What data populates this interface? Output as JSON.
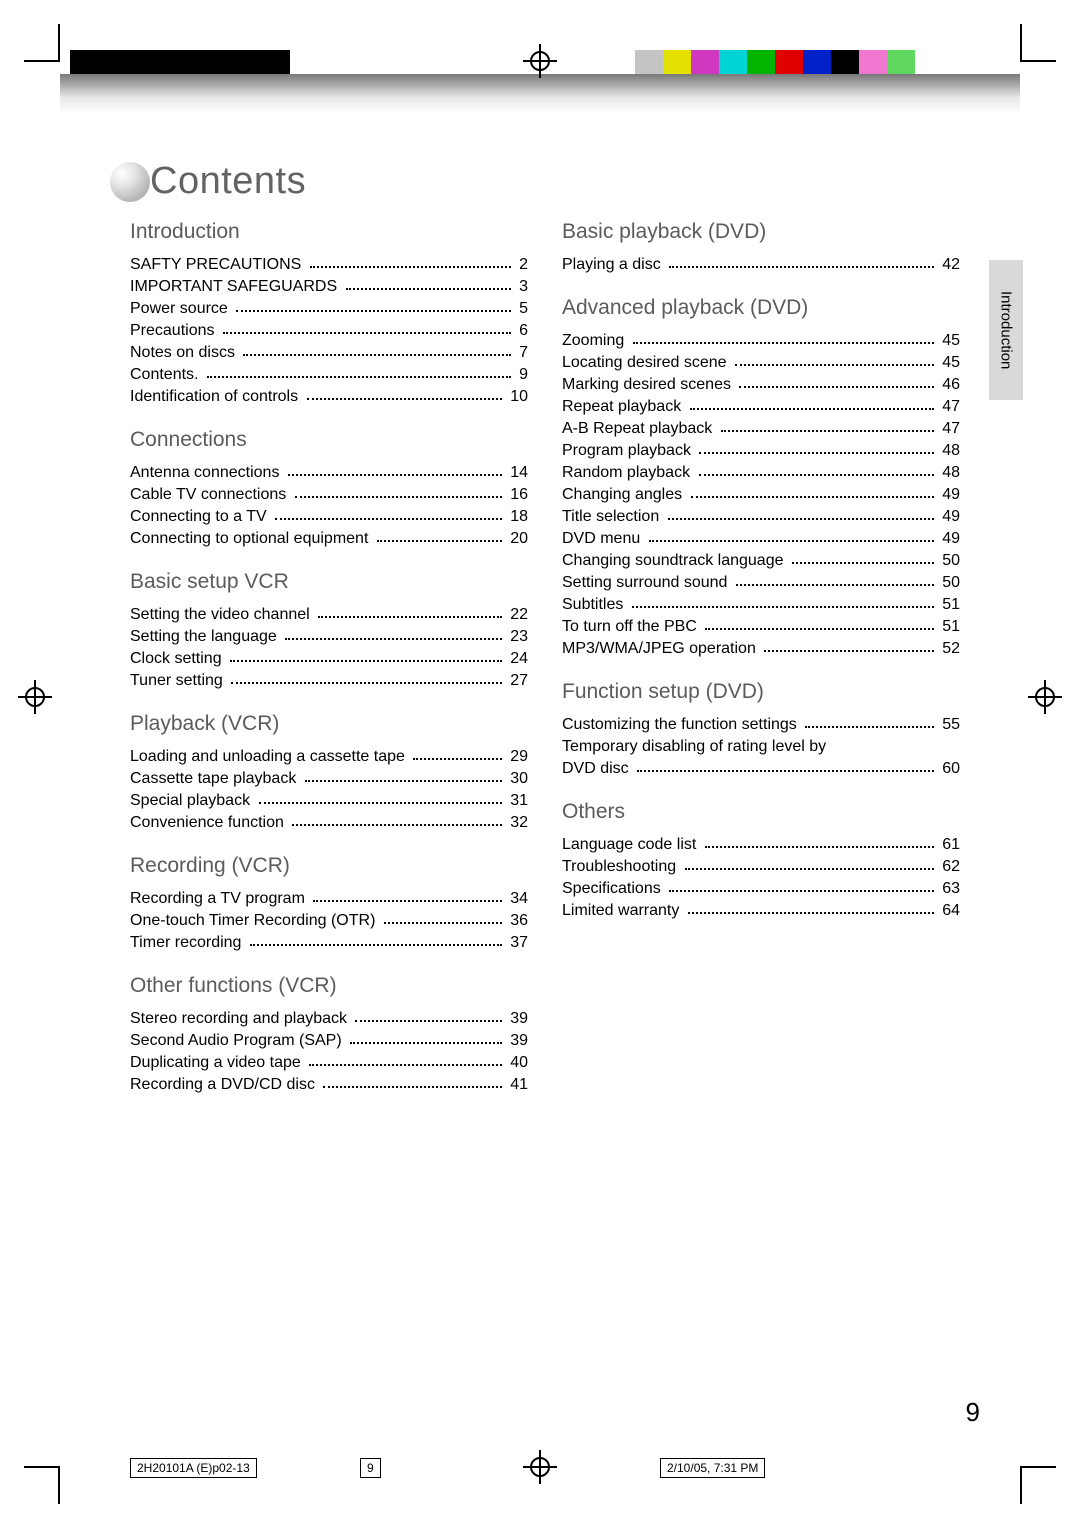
{
  "colors": {
    "swatches": [
      "#c4c4c4",
      "#e4e000",
      "#d038c0",
      "#00d4d4",
      "#00b400",
      "#e00000",
      "#0020c8",
      "#000000",
      "#f078d0",
      "#60d860"
    ],
    "heading_gray": "#5b5b5b",
    "title_gray": "#636363"
  },
  "title": "Contents",
  "side_tab": "Introduction",
  "page_number": "9",
  "footer": {
    "docid": "2H20101A (E)p02-13",
    "page": "9",
    "date": "2/10/05, 7:31 PM"
  },
  "left_sections": [
    {
      "heading": "Introduction",
      "items": [
        {
          "t": "SAFTY PRECAUTIONS",
          "p": "2"
        },
        {
          "t": "IMPORTANT SAFEGUARDS",
          "p": "3"
        },
        {
          "t": "Power source",
          "p": "5"
        },
        {
          "t": "Precautions",
          "p": "6"
        },
        {
          "t": "Notes on discs",
          "p": "7"
        },
        {
          "t": "Contents.",
          "p": "9"
        },
        {
          "t": "Identification of controls",
          "p": "10"
        }
      ]
    },
    {
      "heading": "Connections",
      "items": [
        {
          "t": "Antenna connections",
          "p": "14"
        },
        {
          "t": "Cable TV connections",
          "p": "16"
        },
        {
          "t": "Connecting to a TV",
          "p": "18"
        },
        {
          "t": "Connecting to optional equipment",
          "p": "20"
        }
      ]
    },
    {
      "heading": "Basic setup VCR",
      "items": [
        {
          "t": "Setting the video channel",
          "p": "22"
        },
        {
          "t": "Setting the language",
          "p": "23"
        },
        {
          "t": "Clock setting",
          "p": "24"
        },
        {
          "t": "Tuner setting",
          "p": "27"
        }
      ]
    },
    {
      "heading": "Playback (VCR)",
      "items": [
        {
          "t": "Loading and unloading a cassette tape",
          "p": "29"
        },
        {
          "t": "Cassette tape playback",
          "p": "30"
        },
        {
          "t": "Special playback",
          "p": "31"
        },
        {
          "t": "Convenience function",
          "p": "32"
        }
      ]
    },
    {
      "heading": "Recording (VCR)",
      "items": [
        {
          "t": "Recording a TV program",
          "p": "34"
        },
        {
          "t": "One-touch Timer Recording (OTR)",
          "p": "36"
        },
        {
          "t": "Timer recording",
          "p": "37"
        }
      ]
    },
    {
      "heading": "Other functions (VCR)",
      "items": [
        {
          "t": "Stereo recording and playback",
          "p": "39"
        },
        {
          "t": "Second Audio Program (SAP)",
          "p": "39"
        },
        {
          "t": "Duplicating a video tape",
          "p": "40"
        },
        {
          "t": "Recording a DVD/CD disc",
          "p": "41"
        }
      ]
    }
  ],
  "right_sections": [
    {
      "heading": "Basic playback (DVD)",
      "items": [
        {
          "t": "Playing a disc",
          "p": "42"
        }
      ]
    },
    {
      "heading": "Advanced playback (DVD)",
      "items": [
        {
          "t": "Zooming",
          "p": "45"
        },
        {
          "t": "Locating desired scene",
          "p": "45"
        },
        {
          "t": "Marking desired scenes",
          "p": "46"
        },
        {
          "t": "Repeat playback",
          "p": "47"
        },
        {
          "t": "A-B Repeat playback",
          "p": "47"
        },
        {
          "t": "Program playback",
          "p": "48"
        },
        {
          "t": "Random playback",
          "p": "48"
        },
        {
          "t": "Changing angles",
          "p": "49"
        },
        {
          "t": "Title selection",
          "p": "49"
        },
        {
          "t": "DVD menu",
          "p": "49"
        },
        {
          "t": "Changing soundtrack language",
          "p": "50"
        },
        {
          "t": "Setting surround sound",
          "p": "50"
        },
        {
          "t": "Subtitles",
          "p": "51"
        },
        {
          "t": "To turn off the PBC",
          "p": "51"
        },
        {
          "t": "MP3/WMA/JPEG operation",
          "p": "52"
        }
      ]
    },
    {
      "heading": "Function setup (DVD)",
      "items": [
        {
          "t": "Customizing the function settings",
          "p": "55"
        },
        {
          "wrap": "Temporary disabling of rating level by",
          "t": "DVD disc",
          "p": "60"
        }
      ]
    },
    {
      "heading": "Others",
      "items": [
        {
          "t": "Language code list",
          "p": "61"
        },
        {
          "t": "Troubleshooting",
          "p": "62"
        },
        {
          "t": "Specifications",
          "p": "63"
        },
        {
          "t": "Limited warranty",
          "p": "64"
        }
      ]
    }
  ]
}
